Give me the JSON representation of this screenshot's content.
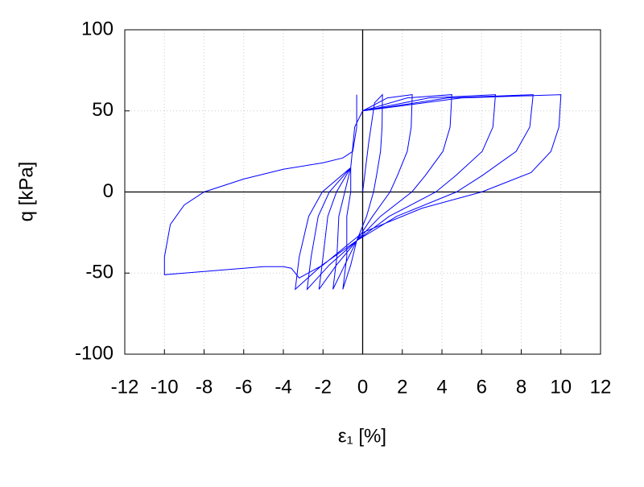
{
  "chart_data": {
    "type": "line",
    "xlabel": "ε₁ [%]",
    "ylabel": "q [kPa]",
    "xlim": [
      -12,
      12
    ],
    "ylim": [
      -100,
      100
    ],
    "xticks": [
      -12,
      -10,
      -8,
      -6,
      -4,
      -2,
      0,
      2,
      4,
      6,
      8,
      10,
      12
    ],
    "yticks": [
      -100,
      -50,
      0,
      50,
      100
    ],
    "grid": true,
    "zero_lines": true,
    "series": [
      {
        "color": "#0000ff",
        "x": [
          0,
          0.3,
          0.6,
          1,
          0.98,
          0.9,
          0.7,
          0.55,
          0.2,
          -0.3,
          -0.6,
          -1,
          -0.8,
          -0.8,
          -0.6,
          -0.6,
          -0.4,
          0,
          1.25,
          2.5,
          2.45,
          2.25,
          1.75,
          1.38,
          0.5,
          -0.3,
          -0.9,
          -1.5,
          -1.3,
          -1.2,
          -0.9,
          -0.6,
          -0.4,
          0,
          2.25,
          4.5,
          4.41,
          4.05,
          3.15,
          2.48,
          0.9,
          -0.3,
          -1.32,
          -2.2,
          -2,
          -1.76,
          -1.32,
          -0.6,
          -0.4,
          0,
          3.35,
          6.7,
          6.57,
          6.03,
          4.69,
          3.69,
          1.34,
          -0.3,
          -1.68,
          -2.8,
          -2.6,
          -2.24,
          -1.68,
          -0.6,
          -0.4,
          0,
          4.3,
          8.6,
          8.43,
          7.74,
          6.02,
          4.73,
          1.72,
          -0.3,
          -2.04,
          -3.4,
          -3.2,
          -2.72,
          -2.04,
          -0.6,
          -0.4,
          0,
          5,
          10,
          9.9,
          9.5,
          8.5,
          6,
          3,
          0,
          -1,
          -2,
          -3.2,
          -3.6,
          -4,
          -5,
          -7,
          -9,
          -10,
          -10,
          -9.7,
          -9,
          -8,
          -6,
          -4,
          -2,
          -1,
          -0.5,
          -0.3,
          -0.3
        ],
        "values": [
          0,
          30,
          55,
          60,
          40,
          25,
          10,
          0,
          -15,
          -30,
          -45,
          -60,
          -40,
          -15,
          0,
          15,
          40,
          50,
          58,
          60,
          40,
          25,
          10,
          0,
          -15,
          -30,
          -45,
          -60,
          -40,
          -15,
          0,
          15,
          40,
          50,
          58,
          60,
          40,
          25,
          10,
          0,
          -15,
          -30,
          -45,
          -60,
          -40,
          -15,
          0,
          15,
          40,
          50,
          58,
          60,
          40,
          25,
          10,
          0,
          -15,
          -30,
          -45,
          -60,
          -40,
          -15,
          0,
          15,
          40,
          50,
          58,
          60,
          40,
          25,
          10,
          0,
          -15,
          -30,
          -45,
          -60,
          -40,
          -15,
          0,
          15,
          40,
          50,
          58,
          60,
          40,
          25,
          12,
          0,
          -10,
          -25,
          -35,
          -45,
          -53,
          -47,
          -46,
          -46,
          -48,
          -50,
          -51,
          -40,
          -20,
          -8,
          0,
          8,
          14,
          18,
          21,
          25,
          40,
          60
        ]
      }
    ]
  }
}
